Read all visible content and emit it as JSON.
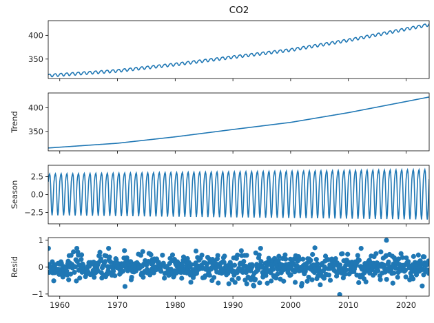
{
  "chart_data": {
    "type": "line",
    "title": "CO2",
    "xlim": [
      1958,
      2024
    ],
    "x_ticks": [
      1960,
      1970,
      1980,
      1990,
      2000,
      2010,
      2020
    ],
    "color": "#1f77b4",
    "panels": [
      {
        "ylabel": "",
        "kind": "line",
        "ylim": [
          309,
          431
        ],
        "y_ticks": [
          350,
          400
        ],
        "y_tick_labels": [
          "350",
          "400"
        ],
        "trend_points": {
          "x": [
            1958,
            1970,
            1980,
            1990,
            2000,
            2010,
            2020,
            2024
          ],
          "y": [
            315,
            325,
            338.5,
            354,
            369,
            389.5,
            413,
            422.5
          ]
        },
        "seasonal_amplitude": 3.0
      },
      {
        "ylabel": "Trend",
        "kind": "line",
        "ylim": [
          309,
          431
        ],
        "y_ticks": [
          350,
          400
        ],
        "y_tick_labels": [
          "350",
          "400"
        ],
        "trend_points": {
          "x": [
            1958,
            1970,
            1980,
            1990,
            2000,
            2010,
            2020,
            2024
          ],
          "y": [
            315,
            325,
            338.5,
            354,
            369,
            389.5,
            413,
            422.5
          ]
        }
      },
      {
        "ylabel": "Season",
        "kind": "seasonal",
        "ylim": [
          -4.1,
          4.1
        ],
        "y_ticks": [
          2.5,
          0,
          -2.5
        ],
        "y_tick_labels": [
          "2.5",
          "0.0",
          "−2.5"
        ],
        "amplitude_start": 2.9,
        "amplitude_end": 3.5
      },
      {
        "ylabel": "Resid",
        "kind": "scatter",
        "ylim": [
          -1.08,
          1.1
        ],
        "y_ticks": [
          1,
          0,
          -1
        ],
        "y_tick_labels": [
          "1",
          "0",
          "−1"
        ],
        "points_per_year": 12,
        "noise_sd": 0.25,
        "outliers": [
          {
            "x": 1971.3,
            "y": -0.72
          },
          {
            "x": 2004.2,
            "y": 0.72
          },
          {
            "x": 2008.5,
            "y": -1.02
          },
          {
            "x": 2016.6,
            "y": 1.0
          },
          {
            "x": 1983.6,
            "y": 0.6
          },
          {
            "x": 1992.4,
            "y": -0.62
          }
        ]
      }
    ]
  }
}
